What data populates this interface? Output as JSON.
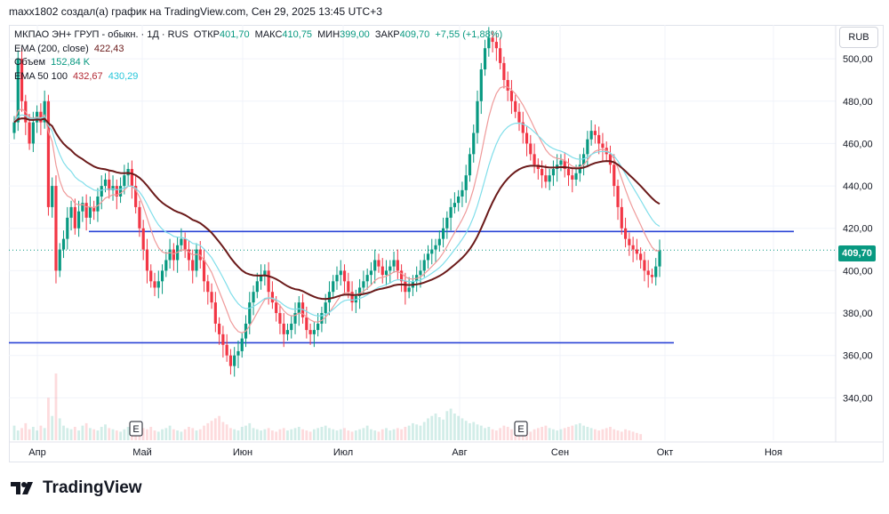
{
  "caption": "maxx1802 создал(а) график на TradingView.com, Сен 29, 2025 13:45 UTC+3",
  "currency_button": "RUB",
  "brand": {
    "name": "TradingView",
    "logo_icon": "tradingview-logo-icon"
  },
  "legend": {
    "symbol": "МКПАО ЭН+ ГРУП - обыкн. · 1Д · RUS",
    "open_label": "ОТКР",
    "open": "401,70",
    "high_label": "МАКС",
    "high": "410,75",
    "low_label": "МИН",
    "low": "399,00",
    "close_label": "ЗАКР",
    "close": "409,70",
    "change": "+7,55 (+1,88%)",
    "ema200_label": "EMA (200, close)",
    "ema200": "422,43",
    "volume_label": "Объем",
    "volume": "152,84 K",
    "ema50100_label": "EMA 50 100",
    "ema50": "432,67",
    "ema100": "430,29"
  },
  "chart_data": {
    "type": "candlestick",
    "y_ticks": [
      "500,00",
      "480,00",
      "460,00",
      "440,00",
      "420,00",
      "400,00",
      "380,00",
      "360,00",
      "340,00"
    ],
    "y_tick_values": [
      500,
      480,
      460,
      440,
      420,
      400,
      380,
      360,
      340
    ],
    "x_ticks": [
      "Апр",
      "Май",
      "Июн",
      "Июл",
      "Авг",
      "Сен",
      "Окт",
      "Ноя"
    ],
    "ylim": [
      320,
      516
    ],
    "last_price": 409.7,
    "last_price_label": "409,70",
    "earnings_marker": "E",
    "horizontal_levels": [
      418.5,
      366
    ],
    "colors": {
      "up": "#089981",
      "down": "#f23645",
      "ema200": "#6b1a1a",
      "ema50": "#ef9a9a",
      "ema100": "#80deea",
      "levels": "#2a43d6"
    },
    "closes": [
      470,
      500,
      480,
      470,
      460,
      470,
      475,
      470,
      480,
      430,
      440,
      400,
      410,
      415,
      425,
      430,
      420,
      428,
      432,
      425,
      430,
      428,
      435,
      440,
      443,
      438,
      440,
      435,
      440,
      445,
      448,
      440,
      430,
      420,
      410,
      400,
      395,
      392,
      395,
      400,
      405,
      410,
      405,
      412,
      415,
      410,
      405,
      400,
      410,
      405,
      395,
      390,
      385,
      375,
      370,
      365,
      360,
      355,
      360,
      362,
      368,
      375,
      385,
      390,
      395,
      398,
      400,
      390,
      385,
      380,
      375,
      370,
      372,
      375,
      380,
      385,
      378,
      372,
      370,
      372,
      375,
      380,
      385,
      390,
      395,
      398,
      400,
      395,
      390,
      385,
      388,
      392,
      395,
      398,
      400,
      405,
      402,
      398,
      400,
      402,
      405,
      400,
      395,
      390,
      392,
      395,
      398,
      400,
      405,
      408,
      410,
      412,
      415,
      420,
      425,
      430,
      432,
      435,
      438,
      445,
      455,
      465,
      480,
      495,
      505,
      510,
      508,
      505,
      498,
      490,
      485,
      480,
      475,
      470,
      465,
      460,
      455,
      450,
      448,
      445,
      442,
      445,
      448,
      450,
      452,
      448,
      445,
      443,
      446,
      450,
      455,
      462,
      466,
      464,
      460,
      458,
      455,
      450,
      440,
      430,
      420,
      415,
      412,
      410,
      408,
      405,
      400,
      398,
      397,
      402,
      409.7
    ],
    "volumes": [
      12,
      8,
      10,
      14,
      9,
      11,
      8,
      12,
      10,
      35,
      20,
      55,
      18,
      12,
      10,
      9,
      11,
      8,
      12,
      14,
      10,
      9,
      8,
      11,
      13,
      10,
      9,
      8,
      7,
      9,
      11,
      13,
      15,
      12,
      10,
      9,
      11,
      8,
      7,
      9,
      10,
      12,
      9,
      8,
      7,
      9,
      11,
      10,
      8,
      9,
      12,
      14,
      16,
      18,
      20,
      15,
      13,
      10,
      9,
      8,
      11,
      12,
      14,
      10,
      9,
      8,
      9,
      10,
      8,
      7,
      9,
      10,
      8,
      9,
      10,
      11,
      9,
      8,
      7,
      9,
      10,
      11,
      12,
      10,
      9,
      8,
      9,
      10,
      8,
      7,
      8,
      9,
      10,
      12,
      9,
      8,
      7,
      9,
      10,
      8,
      9,
      10,
      9,
      11,
      12,
      14,
      13,
      12,
      15,
      18,
      20,
      22,
      19,
      17,
      24,
      26,
      22,
      20,
      18,
      16,
      14,
      15,
      13,
      12,
      10,
      11,
      9,
      8,
      10,
      12,
      11,
      9,
      8,
      10,
      9,
      8,
      7,
      9,
      10,
      11,
      12,
      10,
      9,
      8,
      9,
      10,
      11,
      12,
      13,
      14,
      12,
      11,
      10,
      9,
      8,
      9,
      10,
      11,
      9,
      8,
      7,
      9,
      8,
      7,
      6,
      5
    ]
  }
}
